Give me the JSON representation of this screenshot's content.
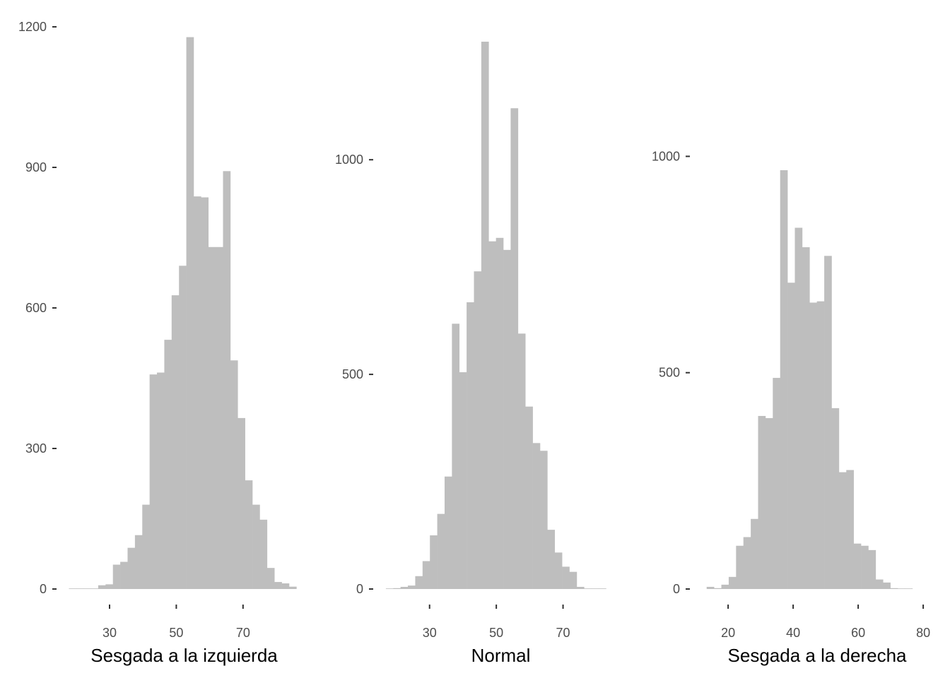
{
  "colors": {
    "bar": "#bebebe",
    "tick": "#333333",
    "tick_label": "#4d4d4d",
    "title": "#000000"
  },
  "chart_data": [
    {
      "type": "bar",
      "xlabel": "Sesgada a la izquierda",
      "ylabel": "",
      "xlim": [
        17.5,
        85.5
      ],
      "ylim": [
        0,
        1200
      ],
      "xticks": [
        30,
        50,
        70
      ],
      "yticks": [
        0,
        300,
        600,
        900,
        1200
      ],
      "grid": false,
      "bin_width": 2.2,
      "bins_start": 17.8,
      "values": [
        0,
        0,
        0,
        0,
        8,
        10,
        52,
        58,
        88,
        115,
        180,
        458,
        462,
        532,
        627,
        690,
        1178,
        838,
        836,
        730,
        730,
        892,
        488,
        365,
        232,
        180,
        148,
        45,
        15,
        12,
        5
      ]
    },
    {
      "type": "bar",
      "xlabel": "Normal",
      "ylabel": "",
      "xlim": [
        16.5,
        84.5
      ],
      "ylim": [
        0,
        1280
      ],
      "xticks": [
        30,
        50,
        70
      ],
      "yticks": [
        0,
        500,
        1000
      ],
      "grid": false,
      "bin_width": 2.2,
      "bins_start": 16.9,
      "values": [
        0,
        2,
        5,
        8,
        30,
        65,
        125,
        175,
        262,
        618,
        505,
        668,
        740,
        1275,
        810,
        818,
        790,
        1120,
        595,
        425,
        340,
        322,
        138,
        85,
        52,
        40,
        5,
        0,
        0,
        0
      ]
    },
    {
      "type": "bar",
      "xlabel": "Sesgada a la derecha",
      "ylabel": "",
      "xlim": [
        11.5,
        81.5
      ],
      "ylim": [
        0,
        1270
      ],
      "xticks": [
        20,
        40,
        60,
        80
      ],
      "yticks": [
        0,
        500,
        1000
      ],
      "grid": false,
      "bin_width": 2.26,
      "bins_start": 13.4,
      "values": [
        5,
        2,
        10,
        28,
        100,
        120,
        162,
        400,
        395,
        488,
        968,
        708,
        835,
        790,
        662,
        665,
        770,
        418,
        270,
        275,
        105,
        100,
        90,
        22,
        15,
        2,
        0,
        0
      ]
    }
  ]
}
